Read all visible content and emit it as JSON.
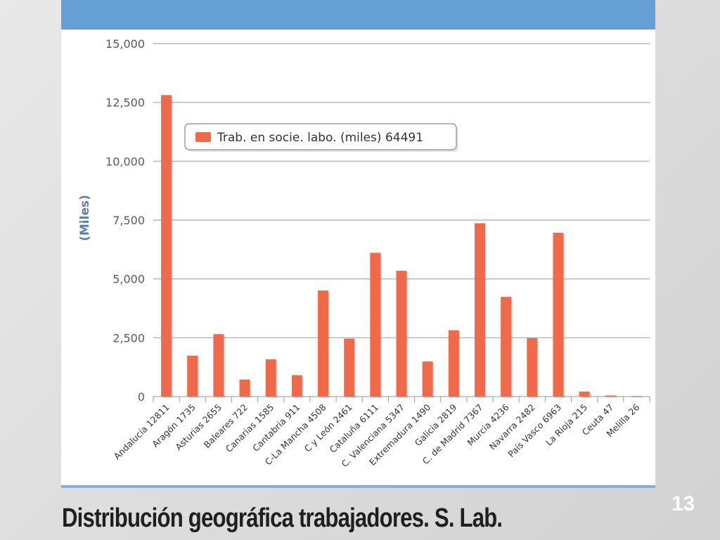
{
  "slide": {
    "title": "Distribución geográfica trabajadores. S. Lab.",
    "page_number": "13",
    "colors": {
      "band": "#659fd3",
      "bar": "#ef6a4a",
      "grid": "#b8b8b8"
    }
  },
  "chart_data": {
    "type": "bar",
    "title": "",
    "xlabel": "",
    "ylabel": "(Miles)",
    "ylim": [
      0,
      15000
    ],
    "yticks": [
      0,
      2500,
      5000,
      7500,
      10000,
      12500,
      15000
    ],
    "ytick_labels": [
      "0",
      "2,500",
      "5,000",
      "7,500",
      "10,000",
      "12,500",
      "15,000"
    ],
    "grid": true,
    "legend_position": "top-left",
    "categories": [
      "Andalucía 12811",
      "Aragón 1735",
      "Asturias 2655",
      "Baleares 722",
      "Canarias 1585",
      "Cantabria 911",
      "C-La Mancha 4508",
      "C y León 2461",
      "Cataluña 6111",
      "C. Valenciana 5347",
      "Extremadura 1490",
      "Galicia 2819",
      "C. de Madrid 7367",
      "Murcia 4236",
      "Navarra 2482",
      "País Vasco 6963",
      "La Rioja 215",
      "Ceuta 47",
      "Melilla 26"
    ],
    "series": [
      {
        "name": "Trab. en socie. labo. (miles) 64491",
        "color": "#ef6a4a",
        "values": [
          12811,
          1735,
          2655,
          722,
          1585,
          911,
          4508,
          2461,
          6111,
          5347,
          1490,
          2819,
          7367,
          4236,
          2482,
          6963,
          215,
          47,
          26
        ]
      }
    ]
  }
}
